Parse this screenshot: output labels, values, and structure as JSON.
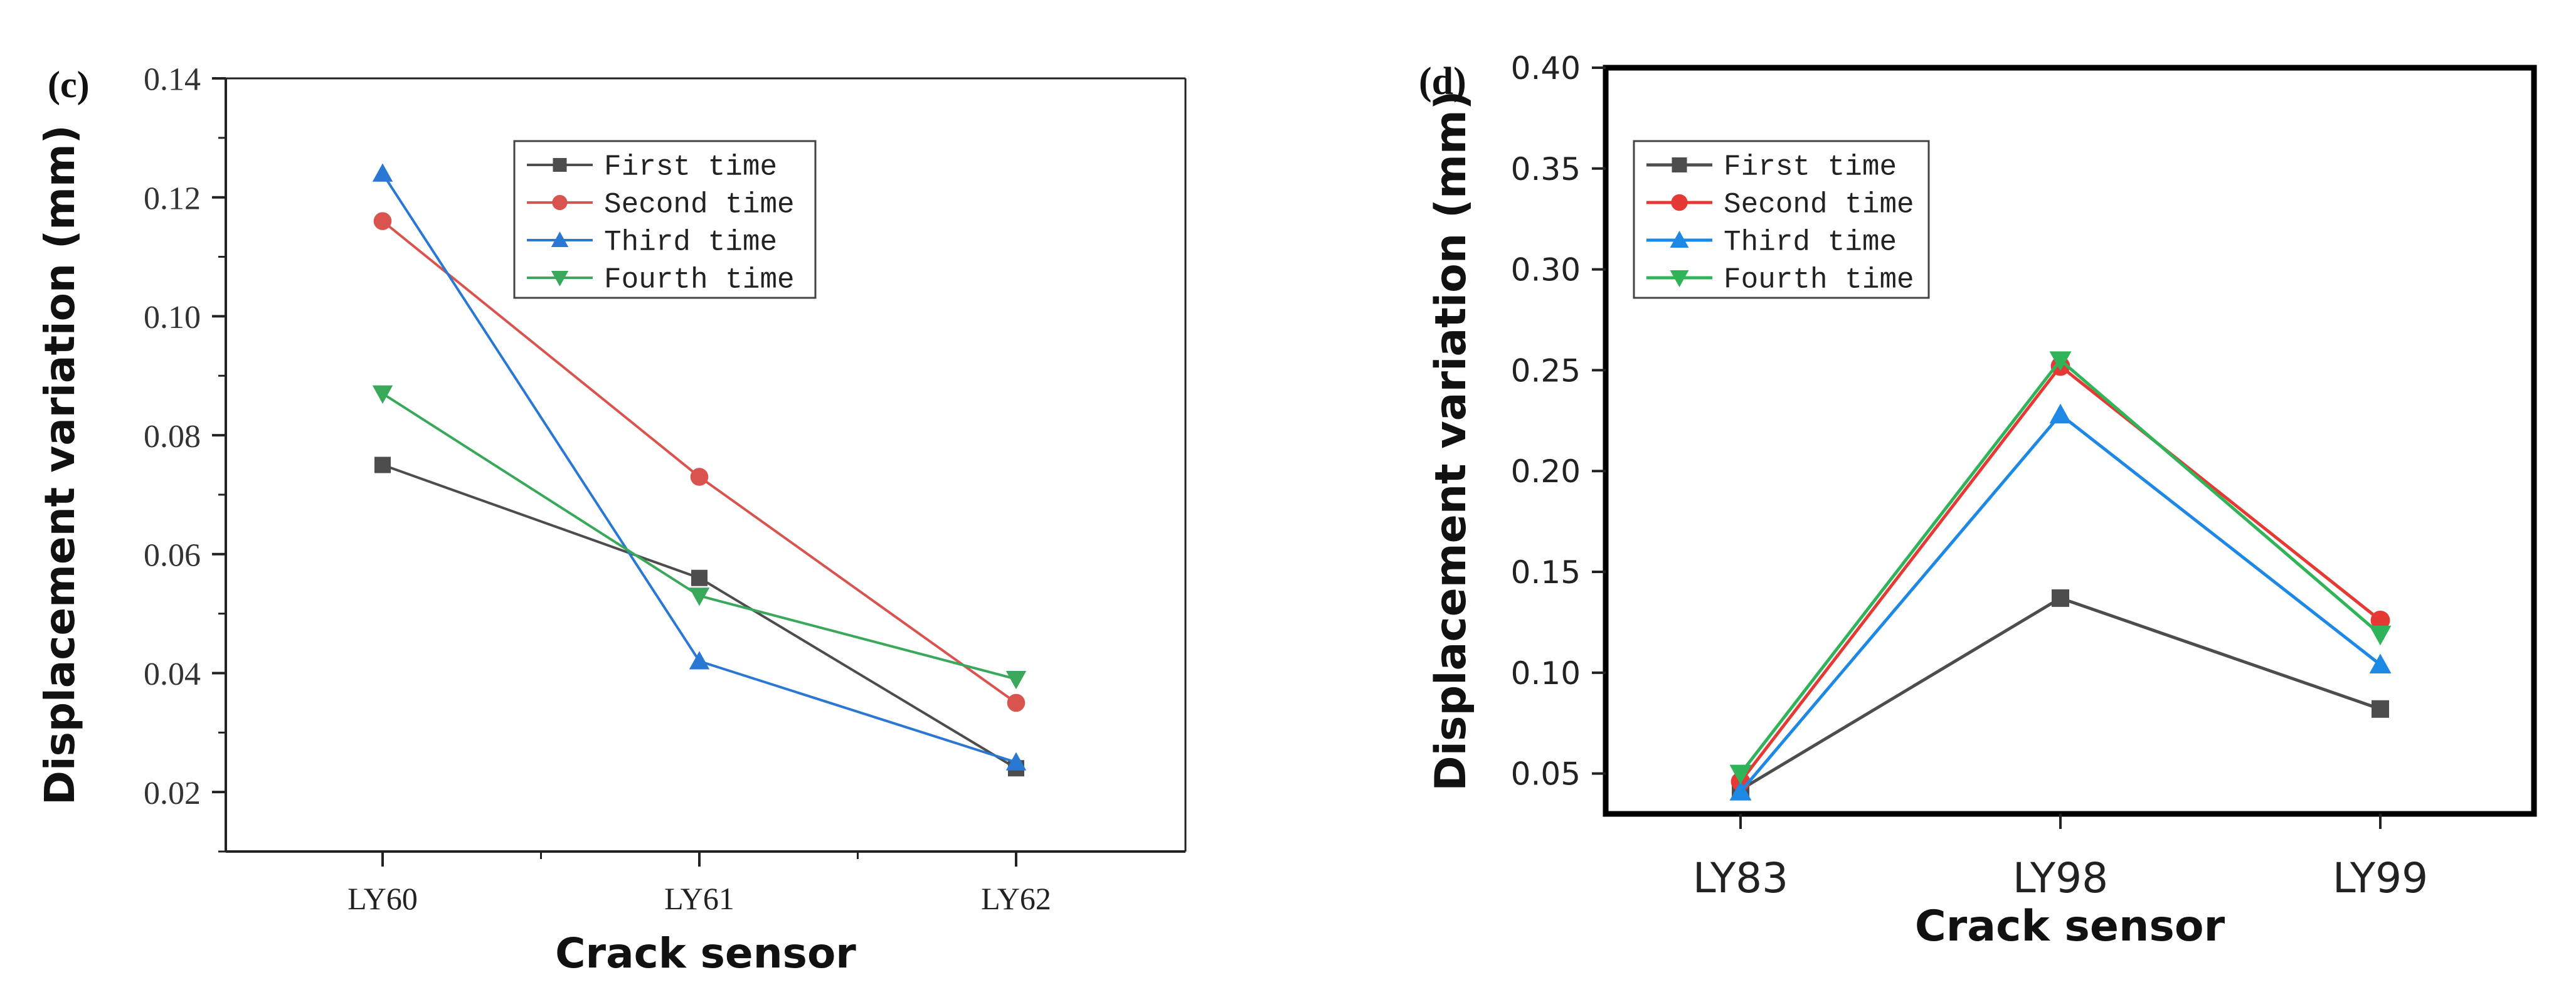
{
  "chart_data": [
    {
      "panel_label": "(c)",
      "type": "line",
      "categories": [
        "LY60",
        "LY61",
        "LY62"
      ],
      "series": [
        {
          "name": "First time",
          "values": [
            0.075,
            0.056,
            0.024
          ],
          "color": "#4d4d4d",
          "marker": "square"
        },
        {
          "name": "Second time",
          "values": [
            0.116,
            0.073,
            0.035
          ],
          "color": "#d9534f",
          "marker": "circle"
        },
        {
          "name": "Third time",
          "values": [
            0.124,
            0.042,
            0.025
          ],
          "color": "#2a78d4",
          "marker": "triangle-up"
        },
        {
          "name": "Fourth time",
          "values": [
            0.087,
            0.053,
            0.039
          ],
          "color": "#3aa85a",
          "marker": "triangle-down"
        }
      ],
      "xlabel": "Crack sensor",
      "ylabel": "Displacement variation (mm)",
      "ylim": [
        0.01,
        0.14
      ],
      "yticks": [
        0.02,
        0.04,
        0.06,
        0.08,
        0.1,
        0.12,
        0.14
      ],
      "ytick_labels": [
        "0.02",
        "0.04",
        "0.06",
        "0.08",
        "0.10",
        "0.12",
        "0.14"
      ],
      "legend": "top-center"
    },
    {
      "panel_label": "(d)",
      "type": "line",
      "categories": [
        "LY83",
        "LY98",
        "LY99"
      ],
      "series": [
        {
          "name": "First time",
          "values": [
            0.042,
            0.137,
            0.082
          ],
          "color": "#4d4d4d",
          "marker": "square"
        },
        {
          "name": "Second time",
          "values": [
            0.046,
            0.252,
            0.126
          ],
          "color": "#e53935",
          "marker": "circle"
        },
        {
          "name": "Third time",
          "values": [
            0.041,
            0.228,
            0.104
          ],
          "color": "#1e88e5",
          "marker": "triangle-up"
        },
        {
          "name": "Fourth time",
          "values": [
            0.05,
            0.255,
            0.119
          ],
          "color": "#2fb45a",
          "marker": "triangle-down"
        }
      ],
      "xlabel": "Crack sensor",
      "ylabel": "Displacement variation (mm)",
      "ylim": [
        0.03,
        0.4
      ],
      "yticks": [
        0.05,
        0.1,
        0.15,
        0.2,
        0.25,
        0.3,
        0.35,
        0.4
      ],
      "ytick_labels": [
        "0.05",
        "0.10",
        "0.15",
        "0.20",
        "0.25",
        "0.30",
        "0.35",
        "0.40"
      ],
      "legend": "top-left"
    }
  ]
}
